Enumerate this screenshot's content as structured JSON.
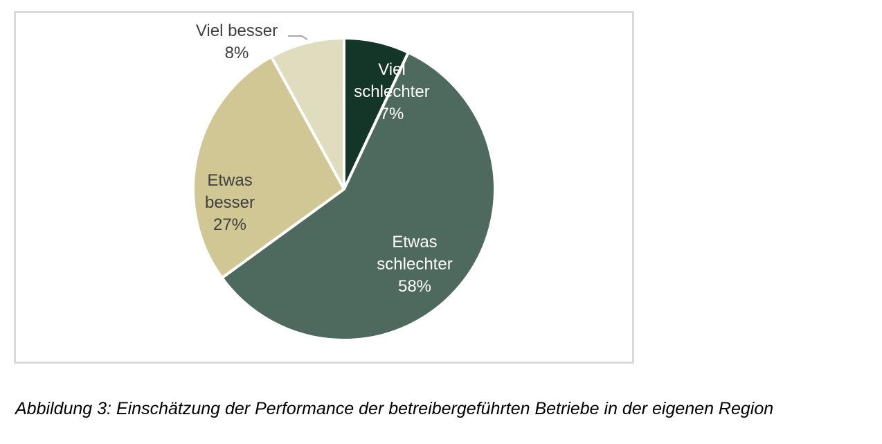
{
  "chart_data": {
    "type": "pie",
    "title": "",
    "start_angle_deg": 0,
    "direction": "clockwise",
    "slices": [
      {
        "label_line1": "Viel",
        "label_line2": "schlechter",
        "value": 7,
        "value_label": "7%",
        "color": "#143629"
      },
      {
        "label_line1": "Etwas",
        "label_line2": "schlechter",
        "value": 58,
        "value_label": "58%",
        "color": "#4e695e"
      },
      {
        "label_line1": "Etwas",
        "label_line2": "besser",
        "value": 27,
        "value_label": "27%",
        "color": "#d1c795"
      },
      {
        "label_line1": "Viel besser",
        "label_line2": "",
        "value": 8,
        "value_label": "8%",
        "color": "#e0dcbe"
      }
    ]
  },
  "caption": "Abbildung 3: Einschätzung der Performance der betreibergeführten Betriebe in der eigenen Region"
}
